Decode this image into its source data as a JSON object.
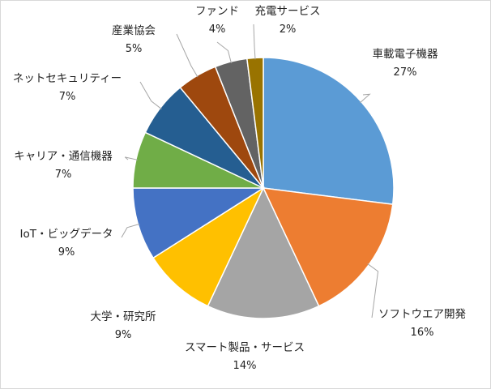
{
  "chart_data": {
    "type": "pie",
    "title": "",
    "start_angle_deg": 0,
    "direction": "clockwise",
    "slices": [
      {
        "label": "車載電子機器",
        "value": 27,
        "pct_label": "27%",
        "color": "#5b9bd5"
      },
      {
        "label": "ソフトウエア開発",
        "value": 16,
        "pct_label": "16%",
        "color": "#ed7d31"
      },
      {
        "label": "スマート製品・サービス",
        "value": 14,
        "pct_label": "14%",
        "color": "#a5a5a5"
      },
      {
        "label": "大学・研究所",
        "value": 9,
        "pct_label": "9%",
        "color": "#ffc000"
      },
      {
        "label": "IoT・ビッグデータ",
        "value": 9,
        "pct_label": "9%",
        "color": "#4472c4"
      },
      {
        "label": "キャリア・通信機器",
        "value": 7,
        "pct_label": "7%",
        "color": "#70ad47"
      },
      {
        "label": "ネットセキュリティー",
        "value": 7,
        "pct_label": "7%",
        "color": "#255e91"
      },
      {
        "label": "産業協会",
        "value": 5,
        "pct_label": "5%",
        "color": "#9e480e"
      },
      {
        "label": "ファンド",
        "value": 4,
        "pct_label": "4%",
        "color": "#636363"
      },
      {
        "label": "充電サービス",
        "value": 2,
        "pct_label": "2%",
        "color": "#997300"
      }
    ],
    "legend": "none",
    "data_labels": "outside with leader lines"
  }
}
